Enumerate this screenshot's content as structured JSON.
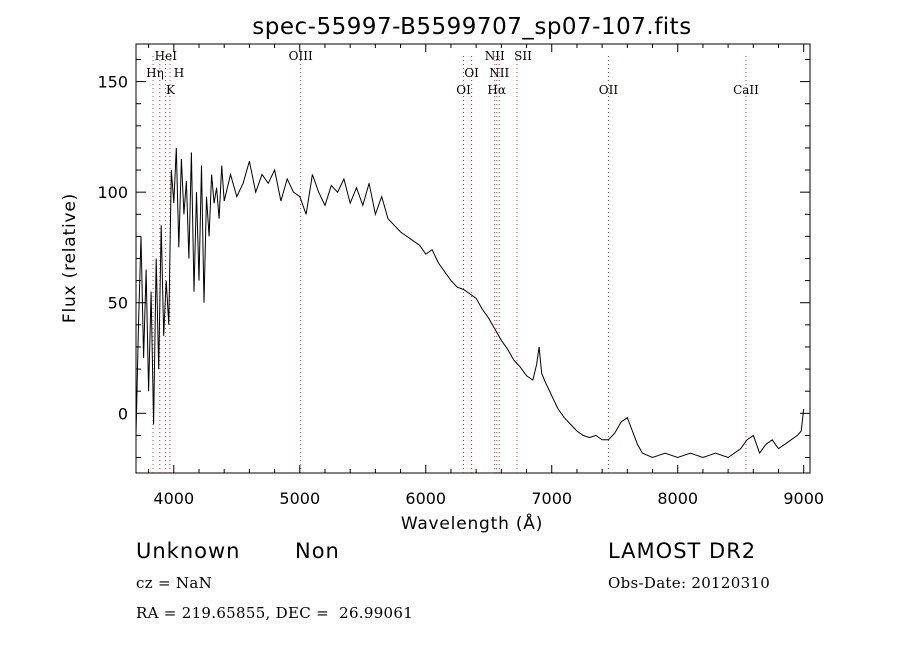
{
  "chart_data": {
    "type": "line",
    "title": "spec-55997-B5599707_sp07-107.fits",
    "xlabel": "Wavelength (Å)",
    "ylabel": "Flux (relative)",
    "xlim": [
      3700,
      9050
    ],
    "ylim": [
      -27,
      167
    ],
    "x_ticks": [
      4000,
      5000,
      6000,
      7000,
      8000,
      9000
    ],
    "x_tick_labels": [
      "4000",
      "5000",
      "6000",
      "7000",
      "8000",
      "9000"
    ],
    "y_ticks": [
      0,
      50,
      100,
      150
    ],
    "y_tick_labels": [
      "0",
      "50",
      "100",
      "150"
    ],
    "grid": false,
    "line_color": "#000000",
    "line_marker_color": "#cc3333",
    "series": [
      {
        "x": [
          3700,
          3720,
          3740,
          3760,
          3780,
          3800,
          3820,
          3840,
          3860,
          3880,
          3900,
          3920,
          3940,
          3960,
          3980,
          4000,
          4020,
          4040,
          4060,
          4080,
          4100,
          4120,
          4140,
          4160,
          4180,
          4200,
          4220,
          4240,
          4260,
          4280,
          4300,
          4320,
          4340,
          4360,
          4380,
          4400,
          4450,
          4500,
          4550,
          4600,
          4650,
          4700,
          4750,
          4800,
          4850,
          4900,
          4950,
          5000,
          5050,
          5100,
          5150,
          5200,
          5250,
          5300,
          5350,
          5400,
          5450,
          5500,
          5550,
          5600,
          5650,
          5700,
          5750,
          5800,
          5850,
          5900,
          5950,
          6000,
          6050,
          6100,
          6150,
          6200,
          6250,
          6300,
          6350,
          6400,
          6450,
          6500,
          6550,
          6600,
          6650,
          6700,
          6750,
          6800,
          6850,
          6880,
          6900,
          6920,
          6950,
          7000,
          7050,
          7100,
          7150,
          7200,
          7250,
          7300,
          7350,
          7400,
          7450,
          7500,
          7550,
          7600,
          7640,
          7680,
          7720,
          7760,
          7800,
          7850,
          7900,
          7950,
          8000,
          8050,
          8100,
          8150,
          8200,
          8250,
          8300,
          8350,
          8400,
          8450,
          8500,
          8550,
          8600,
          8650,
          8700,
          8750,
          8800,
          8850,
          8900,
          8950,
          8980,
          9000
        ],
        "y": [
          -10,
          40,
          80,
          25,
          65,
          10,
          55,
          -5,
          70,
          20,
          85,
          35,
          60,
          40,
          110,
          95,
          120,
          75,
          115,
          90,
          105,
          70,
          118,
          55,
          100,
          60,
          112,
          50,
          98,
          80,
          108,
          95,
          102,
          88,
          112,
          96,
          108,
          98,
          104,
          114,
          100,
          108,
          104,
          110,
          96,
          106,
          100,
          98,
          90,
          108,
          100,
          94,
          103,
          100,
          106,
          95,
          102,
          94,
          104,
          90,
          98,
          88,
          85,
          82,
          80,
          78,
          76,
          72,
          74,
          68,
          64,
          60,
          57,
          56,
          54,
          52,
          47,
          43,
          38,
          33,
          29,
          24,
          21,
          17,
          15,
          22,
          30,
          18,
          14,
          8,
          2,
          -2,
          -5,
          -8,
          -10,
          -11,
          -10,
          -12,
          -12,
          -9,
          -4,
          -2,
          -8,
          -14,
          -18,
          -19,
          -20,
          -19,
          -18,
          -19,
          -20,
          -19,
          -18,
          -19,
          -20,
          -19,
          -18,
          -19,
          -20,
          -18,
          -16,
          -12,
          -10,
          -18,
          -14,
          -12,
          -16,
          -14,
          -12,
          -10,
          -8,
          2
        ]
      }
    ],
    "lines": [
      {
        "wavelength": 3889,
        "label": "HeI"
      },
      {
        "wavelength": 3835,
        "label": "Hη"
      },
      {
        "wavelength": 3970,
        "label": "H"
      },
      {
        "wavelength": 3934,
        "label": "K"
      },
      {
        "wavelength": 5007,
        "label": "OIII"
      },
      {
        "wavelength": 6364,
        "label": "OI"
      },
      {
        "wavelength": 6300,
        "label": "OI"
      },
      {
        "wavelength": 6548,
        "label": "NII"
      },
      {
        "wavelength": 6583,
        "label": "NII"
      },
      {
        "wavelength": 6563,
        "label": "Hα"
      },
      {
        "wavelength": 6724,
        "label": "SII"
      },
      {
        "wavelength": 7450,
        "label": "OII"
      },
      {
        "wavelength": 8542,
        "label": "CaII"
      }
    ]
  },
  "info": {
    "class": "Unknown",
    "subclass": "Non",
    "survey": "LAMOST DR2",
    "cz": "cz = NaN",
    "obs_date": "Obs-Date: 20120310",
    "coords": "RA = 219.65855, DEC =  26.99061"
  }
}
